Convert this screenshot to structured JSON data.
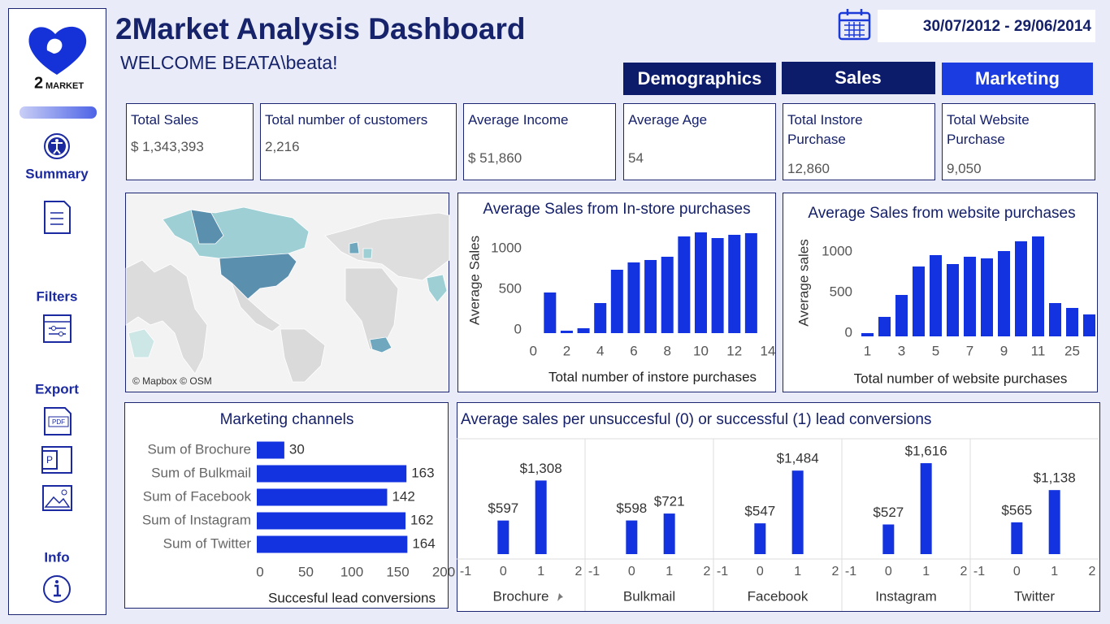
{
  "sidebar": {
    "logo": {
      "number": "2",
      "word": "MARKET"
    },
    "summary": "Summary",
    "filters": "Filters",
    "export": "Export",
    "info": "Info"
  },
  "header": {
    "title": "2Market Analysis Dashboard",
    "welcome": "WELCOME BEATA\\beata!",
    "date_range": "30/07/2012 - 29/06/2014"
  },
  "tabs": [
    "Demographics",
    "Sales",
    "Marketing"
  ],
  "kpis": [
    {
      "label": "Total Sales",
      "value": "$ 1,343,393"
    },
    {
      "label": "Total number of customers",
      "value": "2,216"
    },
    {
      "label": "Average Income",
      "value": "$ 51,860"
    },
    {
      "label": "Average Age",
      "value": "54"
    },
    {
      "label": "Total Instore Purchase",
      "value": "12,860"
    },
    {
      "label": "Total Website Purchase",
      "value": "9,050"
    }
  ],
  "map": {
    "attribution": "© Mapbox © OSM"
  },
  "chart_data": [
    {
      "type": "bar",
      "title": "Average Sales from In-store purchases",
      "x_label": "Total number of instore purchases",
      "y_label": "Average Sales",
      "x": [
        1,
        2,
        3,
        4,
        5,
        6,
        7,
        8,
        9,
        10,
        11,
        12,
        13
      ],
      "values": [
        500,
        30,
        60,
        370,
        780,
        870,
        900,
        940,
        1190,
        1240,
        1170,
        1210,
        1230
      ],
      "color": "#1433e0",
      "xlim": [
        -0.3,
        14
      ],
      "xticks": [
        0,
        2,
        4,
        6,
        8,
        10,
        12,
        14
      ],
      "ylim": [
        0,
        1300
      ],
      "yticks": [
        0,
        500,
        1000
      ]
    },
    {
      "type": "bar",
      "title": "Average Sales from website purchases",
      "x_label": "Total number of website purchases",
      "y_label": "Average sales",
      "categories": [
        "1",
        null,
        "3",
        null,
        "5",
        null,
        "7",
        null,
        "9",
        null,
        "11",
        null,
        "25",
        null
      ],
      "values": [
        40,
        240,
        510,
        860,
        1000,
        890,
        980,
        960,
        1050,
        1170,
        1230,
        410,
        350,
        270
      ],
      "color": "#1433e0",
      "ylim": [
        0,
        1300
      ],
      "yticks": [
        0,
        500,
        1000
      ]
    },
    {
      "type": "hbar",
      "title": "Marketing channels",
      "x_label": "Succesful lead conversions",
      "categories": [
        "Sum of Brochure",
        "Sum of Bulkmail",
        "Sum of Facebook",
        "Sum of Instagram",
        "Sum of Twitter"
      ],
      "values": [
        30,
        163,
        142,
        162,
        164
      ],
      "color": "#1433e0",
      "xlim": [
        0,
        200
      ],
      "xticks": [
        0,
        50,
        100,
        150,
        200
      ]
    },
    {
      "type": "faceted_bar",
      "title": "Average sales per unsuccesful (0) or successful (1) lead conversions",
      "x": [
        0,
        1
      ],
      "xlim": [
        -1,
        2
      ],
      "xticks": [
        -1,
        0,
        1,
        2
      ],
      "ylim": [
        0,
        2050
      ],
      "color": "#1433e0",
      "facets": [
        {
          "name": "Brochure",
          "values": [
            597,
            1308
          ],
          "value_labels": [
            "$597",
            "$1,308"
          ]
        },
        {
          "name": "Bulkmail",
          "values": [
            598,
            721
          ],
          "value_labels": [
            "$598",
            "$721"
          ]
        },
        {
          "name": "Facebook",
          "values": [
            547,
            1484
          ],
          "value_labels": [
            "$547",
            "$1,484"
          ]
        },
        {
          "name": "Instagram",
          "values": [
            527,
            1616
          ],
          "value_labels": [
            "$527",
            "$1,616"
          ]
        },
        {
          "name": "Twitter",
          "values": [
            565,
            1138
          ],
          "value_labels": [
            "$565",
            "$1,138"
          ]
        }
      ]
    }
  ]
}
